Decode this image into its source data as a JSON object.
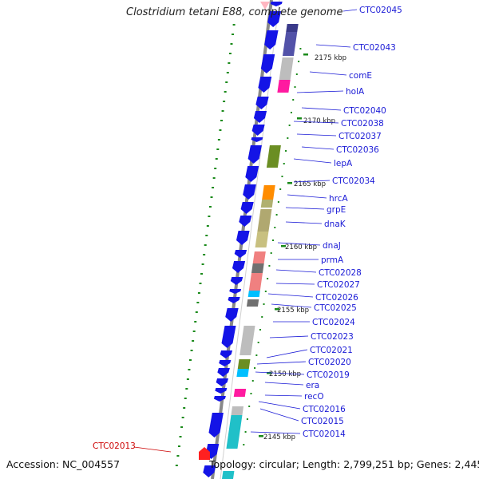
{
  "title": "Clostridium tetani E88, complete genome",
  "accession": "Accession: NC_004557",
  "topology": "Topology: circular; Length: 2,799,251 bp; Genes: 2,445",
  "colors": {
    "forward_gene": "#1414e6",
    "backbone": "#888888",
    "gc_skew": "#1a8a1a",
    "label_blue": "#1a1ad6",
    "label_red": "#cc0000"
  },
  "scale_ticks": [
    {
      "text": "2175 kbp"
    },
    {
      "text": "2170 kbp"
    },
    {
      "text": "2165 kbp"
    },
    {
      "text": "2160 kbp"
    },
    {
      "text": "2155 kbp"
    },
    {
      "text": "2150 kbp"
    },
    {
      "text": "2145 kbp"
    }
  ],
  "gene_labels": [
    {
      "text": "CTC02045"
    },
    {
      "text": "CTC02043"
    },
    {
      "text": "comE"
    },
    {
      "text": "holA"
    },
    {
      "text": "CTC02040"
    },
    {
      "text": "CTC02038"
    },
    {
      "text": "CTC02037"
    },
    {
      "text": "CTC02036"
    },
    {
      "text": "lepA"
    },
    {
      "text": "CTC02034"
    },
    {
      "text": "hrcA"
    },
    {
      "text": "grpE"
    },
    {
      "text": "dnaK"
    },
    {
      "text": "dnaJ"
    },
    {
      "text": "prmA"
    },
    {
      "text": "CTC02028"
    },
    {
      "text": "CTC02027"
    },
    {
      "text": "CTC02026"
    },
    {
      "text": "CTC02025"
    },
    {
      "text": "CTC02024"
    },
    {
      "text": "CTC02023"
    },
    {
      "text": "CTC02021"
    },
    {
      "text": "CTC02020"
    },
    {
      "text": "CTC02019"
    },
    {
      "text": "era"
    },
    {
      "text": "recO"
    },
    {
      "text": "CTC02016"
    },
    {
      "text": "CTC02015"
    },
    {
      "text": "CTC02014"
    }
  ],
  "left_labels": [
    {
      "text": "CTC02013"
    }
  ]
}
